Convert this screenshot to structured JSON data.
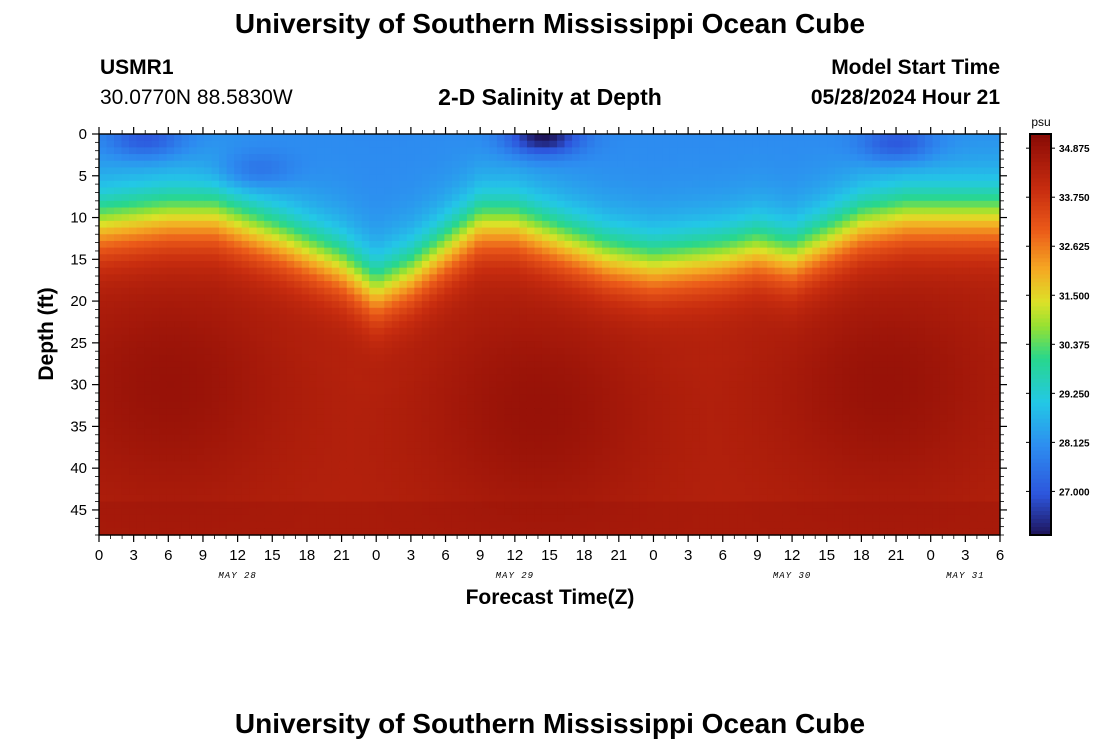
{
  "header": {
    "title": "University of Southern Mississippi Ocean Cube",
    "station_id": "USMR1",
    "station_coords": "30.0770N  88.5830W",
    "subtitle": "2-D Salinity at Depth",
    "model_start_label": "Model Start Time",
    "model_start_time": "05/28/2024 Hour 21"
  },
  "footer": {
    "title": "University of Southern Mississippi Ocean Cube"
  },
  "chart_data": {
    "type": "heatmap",
    "title": "2-D Salinity at Depth",
    "xlabel": "Forecast Time(Z)",
    "ylabel": "Depth (ft)",
    "x_ticks": [
      "0",
      "3",
      "6",
      "9",
      "12",
      "15",
      "18",
      "21",
      "0",
      "3",
      "6",
      "9",
      "12",
      "15",
      "18",
      "21",
      "0",
      "3",
      "6",
      "9",
      "12",
      "15",
      "18",
      "21",
      "0",
      "3",
      "6"
    ],
    "date_labels": [
      {
        "label": "MAY 28",
        "hour": 12
      },
      {
        "label": "MAY 29",
        "hour": 36
      },
      {
        "label": "MAY 30",
        "hour": 60
      },
      {
        "label": "MAY 31",
        "hour": 75
      }
    ],
    "x_range_hours": [
      0,
      78
    ],
    "y_ticks": [
      0,
      5,
      10,
      15,
      20,
      25,
      30,
      35,
      40,
      45
    ],
    "y_range_ft": [
      0,
      48
    ],
    "y_inverted": true,
    "colorbar": {
      "units": "psu",
      "range": [
        26.0,
        35.2
      ],
      "tick_values": [
        34.875,
        33.75,
        32.625,
        31.5,
        30.375,
        29.25,
        28.125,
        27.0
      ],
      "tick_labels": [
        "34.875",
        "33.750",
        "32.625",
        "31.500",
        "30.375",
        "29.250",
        "28.125",
        "27.000"
      ]
    },
    "halocline_depth_ft": [
      {
        "hour": 0,
        "depth": 11
      },
      {
        "hour": 6,
        "depth": 10
      },
      {
        "hour": 10,
        "depth": 10
      },
      {
        "hour": 16,
        "depth": 13
      },
      {
        "hour": 21,
        "depth": 16
      },
      {
        "hour": 24,
        "depth": 19
      },
      {
        "hour": 27,
        "depth": 17
      },
      {
        "hour": 30,
        "depth": 14
      },
      {
        "hour": 33,
        "depth": 11
      },
      {
        "hour": 36,
        "depth": 11
      },
      {
        "hour": 40,
        "depth": 13
      },
      {
        "hour": 44,
        "depth": 15
      },
      {
        "hour": 48,
        "depth": 16
      },
      {
        "hour": 54,
        "depth": 15
      },
      {
        "hour": 57,
        "depth": 14
      },
      {
        "hour": 60,
        "depth": 15
      },
      {
        "hour": 63,
        "depth": 13
      },
      {
        "hour": 66,
        "depth": 11
      },
      {
        "hour": 70,
        "depth": 10
      },
      {
        "hour": 75,
        "depth": 10
      },
      {
        "hour": 78,
        "depth": 10
      }
    ],
    "surface_salinity_psu": 28.0,
    "deep_salinity_psu": 34.9,
    "fresh_surface_patches": [
      {
        "hour": 4,
        "depth": 0.5,
        "psu": 27.0
      },
      {
        "hour": 14,
        "depth": 4,
        "psu": 27.6
      },
      {
        "hour": 38.5,
        "depth": 0.3,
        "psu": 26.0
      },
      {
        "hour": 69,
        "depth": 1,
        "psu": 27.0
      }
    ],
    "max_salinity_cores": [
      {
        "hour": 6,
        "depth": 30
      },
      {
        "hour": 38,
        "depth": 33
      },
      {
        "hour": 68,
        "depth": 30
      }
    ]
  }
}
